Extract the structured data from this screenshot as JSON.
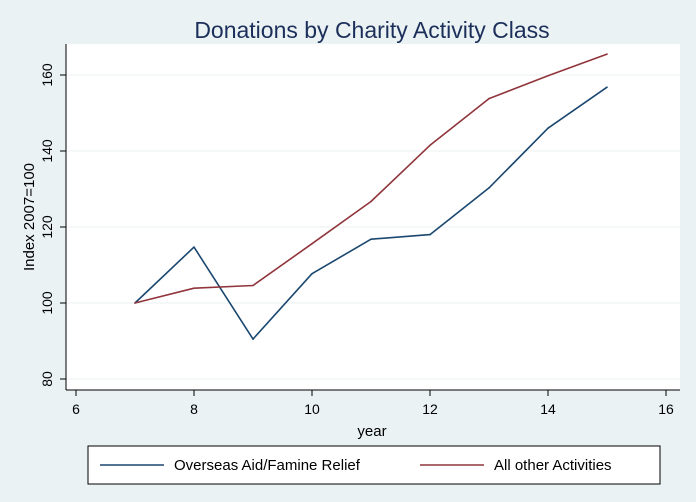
{
  "chart_data": {
    "type": "line",
    "title": "Donations by Charity Activity Class",
    "xlabel": "year",
    "ylabel": "Index 2007=100",
    "xlim": [
      6,
      16
    ],
    "ylim": [
      80,
      165
    ],
    "xticks": [
      6,
      8,
      10,
      12,
      14,
      16
    ],
    "yticks": [
      80,
      100,
      120,
      140,
      160
    ],
    "grid": true,
    "legend": "bottom",
    "series": [
      {
        "name": "Overseas Aid/Famine Relief",
        "color": "#1a476f",
        "x": [
          7,
          8,
          9,
          10,
          11,
          12,
          13,
          14,
          15
        ],
        "y": [
          100,
          114.7,
          90.5,
          107.7,
          116.8,
          118,
          130.3,
          146,
          156.8
        ]
      },
      {
        "name": "All other Activities",
        "color": "#90353b",
        "x": [
          7,
          8,
          9,
          10,
          11,
          12,
          13,
          14,
          15
        ],
        "y": [
          100,
          103.9,
          104.6,
          115.6,
          126.7,
          141.5,
          153.8,
          159.8,
          165.5
        ]
      }
    ]
  }
}
